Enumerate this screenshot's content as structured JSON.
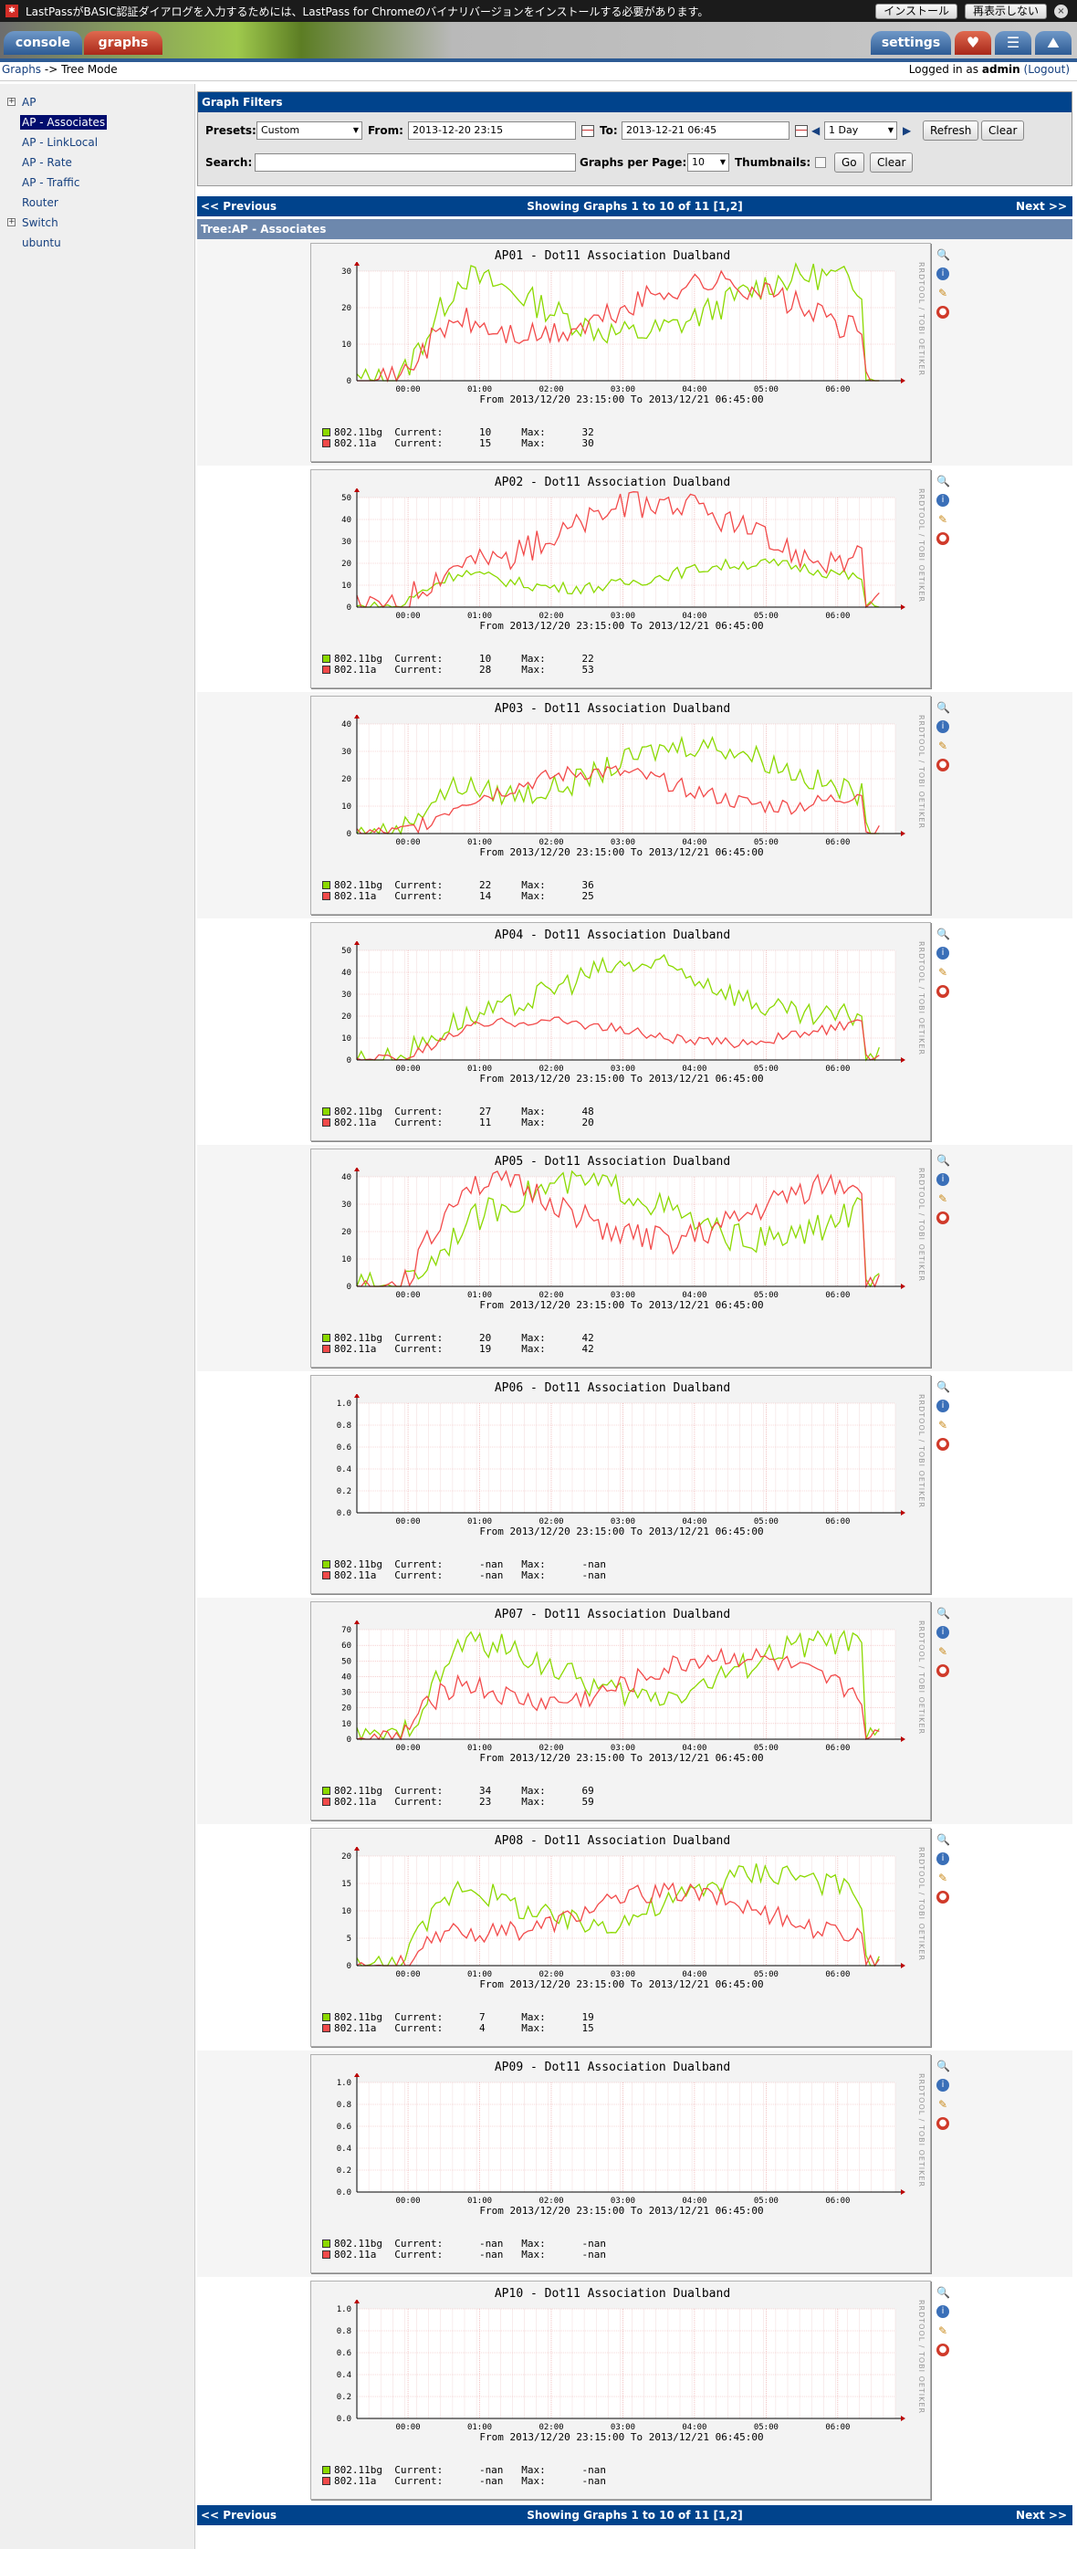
{
  "lastpass": {
    "message": "LastPassがBASIC認証ダイアログを入力するためには、LastPass for Chromeのバイナリバージョンをインストールする必要があります。",
    "install_label": "インストール",
    "dismiss_label": "再表示しない",
    "close_glyph": "×"
  },
  "header": {
    "tab_console": "console",
    "tab_graphs": "graphs",
    "tab_settings": "settings"
  },
  "breadcrumb": {
    "graphs": "Graphs",
    "sep": "->",
    "current": "Tree Mode"
  },
  "login": {
    "prefix": "Logged in as",
    "user": "admin",
    "logout": "(Logout)"
  },
  "tree": {
    "items": [
      {
        "label": "AP",
        "expander": "+"
      },
      {
        "label": "AP - Associates",
        "selected": true
      },
      {
        "label": "AP - LinkLocal"
      },
      {
        "label": "AP - Rate"
      },
      {
        "label": "AP - Traffic"
      },
      {
        "label": "Router"
      },
      {
        "label": "Switch",
        "expander": "+"
      },
      {
        "label": "ubuntu"
      }
    ]
  },
  "filters": {
    "title": "Graph Filters",
    "presets_label": "Presets:",
    "presets_value": "Custom",
    "from_label": "From:",
    "from_value": "2013-12-20 23:15",
    "to_label": "To:",
    "to_value": "2013-12-21 06:45",
    "span_value": "1 Day",
    "refresh_label": "Refresh",
    "clear_label": "Clear",
    "search_label": "Search:",
    "search_value": "",
    "per_page_label": "Graphs per Page:",
    "per_page_value": "10",
    "thumbnails_label": "Thumbnails:",
    "go_label": "Go",
    "clear2_label": "Clear"
  },
  "nav": {
    "prev": "<< Previous",
    "next": "Next >>",
    "showing": "Showing Graphs 1 to 10 of 11 [1,2]"
  },
  "tree_label": "Tree:AP - Associates",
  "time_axis": [
    "00:00",
    "01:00",
    "02:00",
    "03:00",
    "04:00",
    "05:00",
    "06:00"
  ],
  "range_text": "From 2013/12/20 23:15:00 To 2013/12/21 06:45:00",
  "side_text": "RRDTOOL / TOBI OETIKER",
  "colors": {
    "bg": "#8bd900",
    "a": "#f24a4a",
    "nav": "#00438c"
  },
  "graphs": [
    {
      "title": "AP01 - Dot11 Association Dualband",
      "ymax": 30,
      "ticks": [
        0,
        10,
        20,
        30
      ],
      "bg": {
        "name": "802.11bg",
        "current": "10",
        "max": "32"
      },
      "a": {
        "name": "802.11a",
        "current": "15",
        "max": "30"
      }
    },
    {
      "title": "AP02 - Dot11 Association Dualband",
      "ymax": 50,
      "ticks": [
        0,
        10,
        20,
        30,
        40,
        50
      ],
      "bg": {
        "name": "802.11bg",
        "current": "10",
        "max": "22"
      },
      "a": {
        "name": "802.11a",
        "current": "28",
        "max": "53"
      }
    },
    {
      "title": "AP03 - Dot11 Association Dualband",
      "ymax": 40,
      "ticks": [
        0,
        10,
        20,
        30,
        40
      ],
      "bg": {
        "name": "802.11bg",
        "current": "22",
        "max": "36"
      },
      "a": {
        "name": "802.11a",
        "current": "14",
        "max": "25"
      }
    },
    {
      "title": "AP04 - Dot11 Association Dualband",
      "ymax": 50,
      "ticks": [
        0,
        10,
        20,
        30,
        40,
        50
      ],
      "bg": {
        "name": "802.11bg",
        "current": "27",
        "max": "48"
      },
      "a": {
        "name": "802.11a",
        "current": "11",
        "max": "20"
      }
    },
    {
      "title": "AP05 - Dot11 Association Dualband",
      "ymax": 40,
      "ticks": [
        0,
        10,
        20,
        30,
        40
      ],
      "bg": {
        "name": "802.11bg",
        "current": "20",
        "max": "42"
      },
      "a": {
        "name": "802.11a",
        "current": "19",
        "max": "42"
      }
    },
    {
      "title": "AP06 - Dot11 Association Dualband",
      "ymax": 1.0,
      "ticks": [
        "0.0",
        "0.2",
        "0.4",
        "0.6",
        "0.8",
        "1.0"
      ],
      "bg": {
        "name": "802.11bg",
        "current": "-nan",
        "max": "-nan"
      },
      "a": {
        "name": "802.11a",
        "current": "-nan",
        "max": "-nan"
      }
    },
    {
      "title": "AP07 - Dot11 Association Dualband",
      "ymax": 70,
      "ticks": [
        0,
        10,
        20,
        30,
        40,
        50,
        60,
        70
      ],
      "bg": {
        "name": "802.11bg",
        "current": "34",
        "max": "69"
      },
      "a": {
        "name": "802.11a",
        "current": "23",
        "max": "59"
      }
    },
    {
      "title": "AP08 - Dot11 Association Dualband",
      "ymax": 20,
      "ticks": [
        0,
        5,
        10,
        15,
        20
      ],
      "bg": {
        "name": "802.11bg",
        "current": "7",
        "max": "19"
      },
      "a": {
        "name": "802.11a",
        "current": "4",
        "max": "15"
      }
    },
    {
      "title": "AP09 - Dot11 Association Dualband",
      "ymax": 1.0,
      "ticks": [
        "0.0",
        "0.2",
        "0.4",
        "0.6",
        "0.8",
        "1.0"
      ],
      "bg": {
        "name": "802.11bg",
        "current": "-nan",
        "max": "-nan"
      },
      "a": {
        "name": "802.11a",
        "current": "-nan",
        "max": "-nan"
      }
    },
    {
      "title": "AP10 - Dot11 Association Dualband",
      "ymax": 1.0,
      "ticks": [
        "0.0",
        "0.2",
        "0.4",
        "0.6",
        "0.8",
        "1.0"
      ],
      "bg": {
        "name": "802.11bg",
        "current": "-nan",
        "max": "-nan"
      },
      "a": {
        "name": "802.11a",
        "current": "-nan",
        "max": "-nan"
      }
    }
  ]
}
